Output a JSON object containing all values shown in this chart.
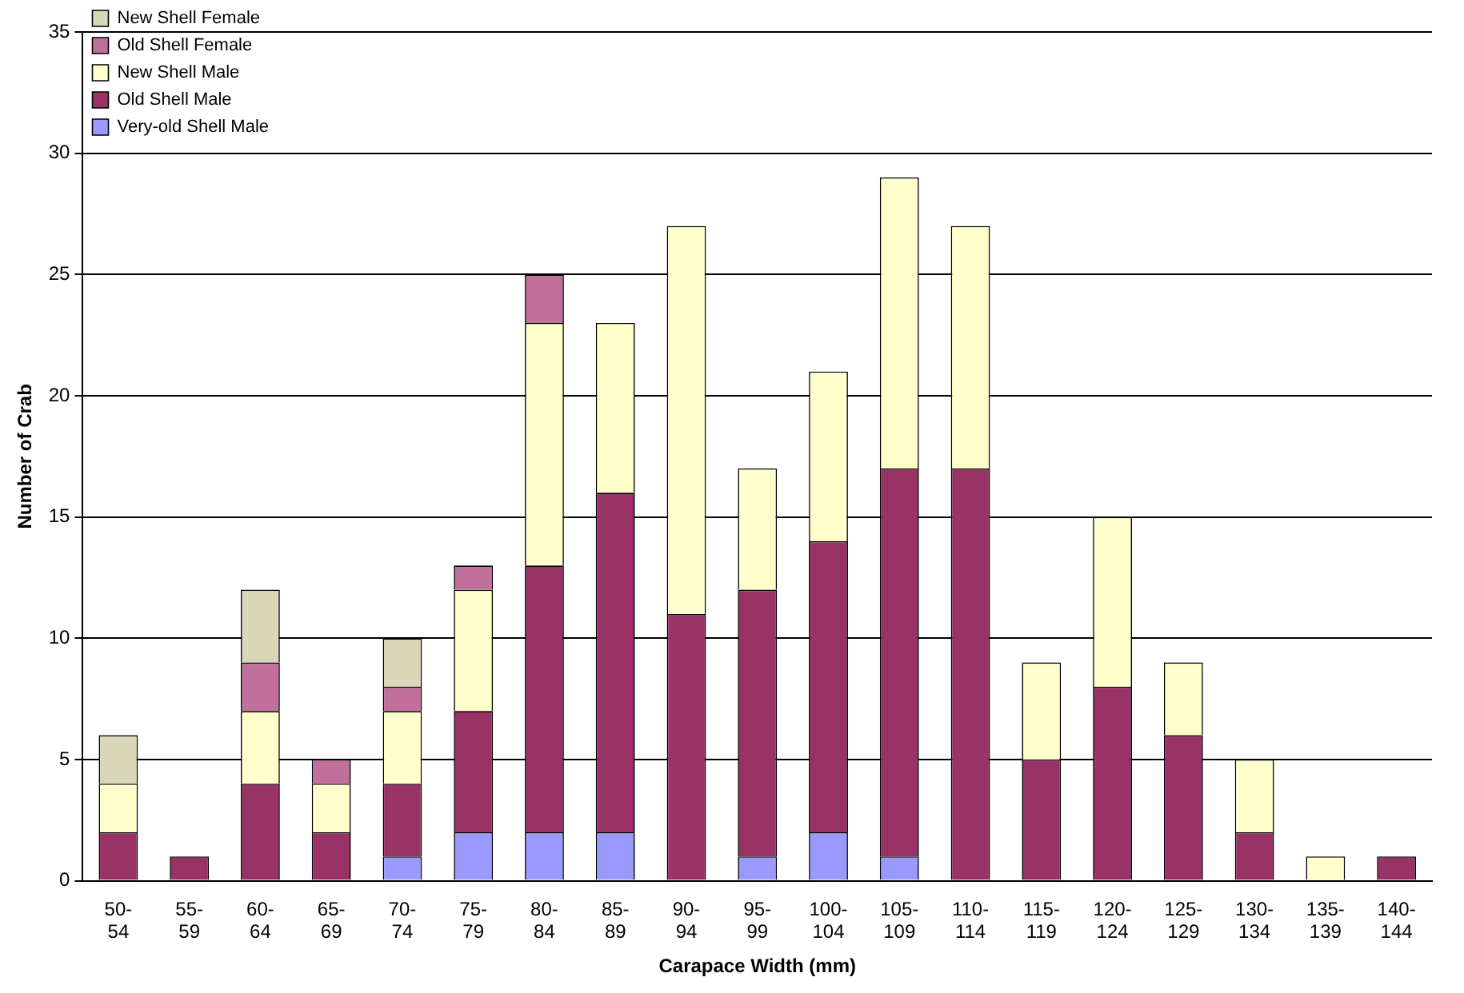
{
  "chart_data": {
    "type": "bar",
    "stacked": true,
    "xlabel": "Carapace Width (mm)",
    "ylabel": "Number of Crab",
    "categories": [
      "50-54",
      "55-59",
      "60-64",
      "65-69",
      "70-74",
      "75-79",
      "80-84",
      "85-89",
      "90-94",
      "95-99",
      "100-104",
      "105-109",
      "110-114",
      "115-119",
      "120-124",
      "125-129",
      "130-134",
      "135-139",
      "140-144"
    ],
    "series": [
      {
        "name": "Very-old Shell Male",
        "color": "#9999ff",
        "values": [
          null,
          null,
          null,
          null,
          1,
          2,
          2,
          2,
          null,
          1,
          2,
          1,
          null,
          null,
          null,
          null,
          null,
          null,
          null
        ]
      },
      {
        "name": "Old Shell Male",
        "color": "#993366",
        "values": [
          2,
          1,
          4,
          2,
          3,
          5,
          11,
          14,
          11,
          11,
          12,
          16,
          17,
          5,
          8,
          6,
          2,
          null,
          1
        ]
      },
      {
        "name": "New Shell Male",
        "color": "#ffffcc",
        "values": [
          2,
          null,
          3,
          2,
          3,
          5,
          10,
          7,
          16,
          5,
          7,
          12,
          10,
          4,
          7,
          3,
          3,
          1,
          null
        ]
      },
      {
        "name": "Old Shell Female",
        "color": "#c0709a",
        "values": [
          null,
          null,
          2,
          1,
          1,
          1,
          2,
          null,
          null,
          null,
          null,
          null,
          null,
          null,
          null,
          null,
          null,
          null,
          null
        ]
      },
      {
        "name": "New Shell Female",
        "color": "#d8d8b8",
        "values": [
          2,
          null,
          3,
          null,
          2,
          null,
          null,
          null,
          null,
          null,
          null,
          null,
          null,
          null,
          null,
          null,
          null,
          null,
          null
        ]
      }
    ],
    "ylim": [
      0,
      35
    ],
    "yticks": [
      0,
      5,
      10,
      15,
      20,
      25,
      30,
      35
    ],
    "grid": "y",
    "legend": "top left"
  }
}
